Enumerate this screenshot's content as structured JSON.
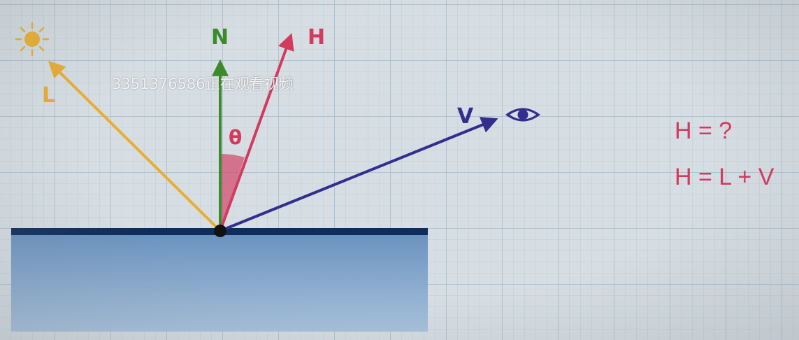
{
  "diagram": {
    "vectors": {
      "light": {
        "label": "L",
        "color": "#e8ad32"
      },
      "normal": {
        "label": "N",
        "color": "#3b8a2c"
      },
      "halfway": {
        "label": "H",
        "color": "#d23a5e"
      },
      "view": {
        "label": "V",
        "color": "#332e8e"
      }
    },
    "angle_label": "θ",
    "icons": [
      "sun-icon",
      "eye-icon"
    ],
    "surface_color": "#0f2d5c"
  },
  "equations": {
    "line1": "H = ?",
    "line2": "H = L + V"
  },
  "watermark": "3351376586正在观看视频"
}
